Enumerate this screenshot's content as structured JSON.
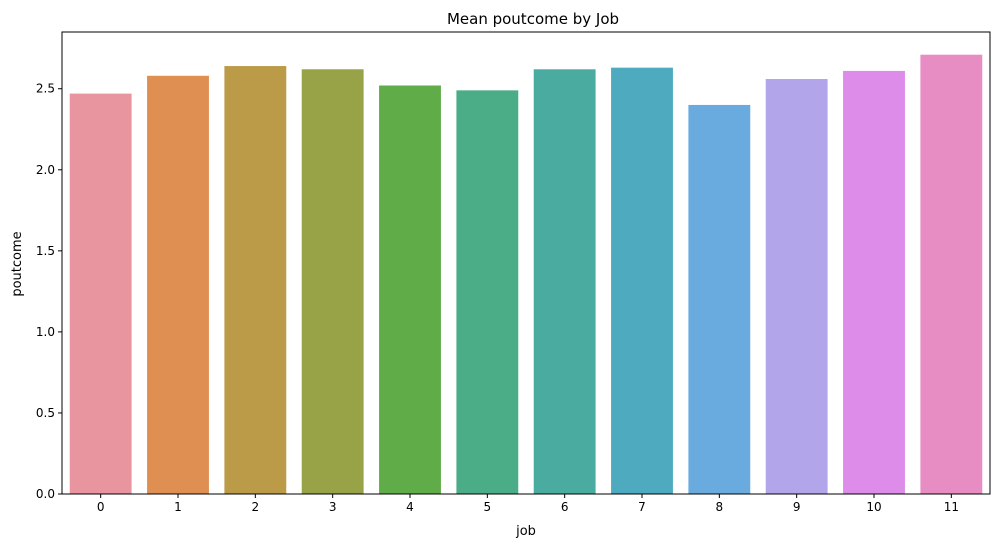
{
  "chart_data": {
    "type": "bar",
    "title": "Mean poutcome by Job",
    "xlabel": "job",
    "ylabel": "poutcome",
    "categories": [
      "0",
      "1",
      "2",
      "3",
      "4",
      "5",
      "6",
      "7",
      "8",
      "9",
      "10",
      "11"
    ],
    "values": [
      2.47,
      2.58,
      2.64,
      2.62,
      2.52,
      2.49,
      2.62,
      2.63,
      2.4,
      2.56,
      2.61,
      2.71
    ],
    "colors": [
      "#e8959f",
      "#e08f53",
      "#bb9a48",
      "#98a246",
      "#5fac49",
      "#4aad88",
      "#4aaca1",
      "#4daabf",
      "#6aabdf",
      "#b2a5e9",
      "#dd8de9",
      "#e78dc4"
    ],
    "ylim": [
      0,
      2.85
    ],
    "yticks": [
      0.0,
      0.5,
      1.0,
      1.5,
      2.0,
      2.5
    ],
    "ytick_labels": [
      "0.0",
      "0.5",
      "1.0",
      "1.5",
      "2.0",
      "2.5"
    ],
    "grid": false,
    "legend": false
  }
}
